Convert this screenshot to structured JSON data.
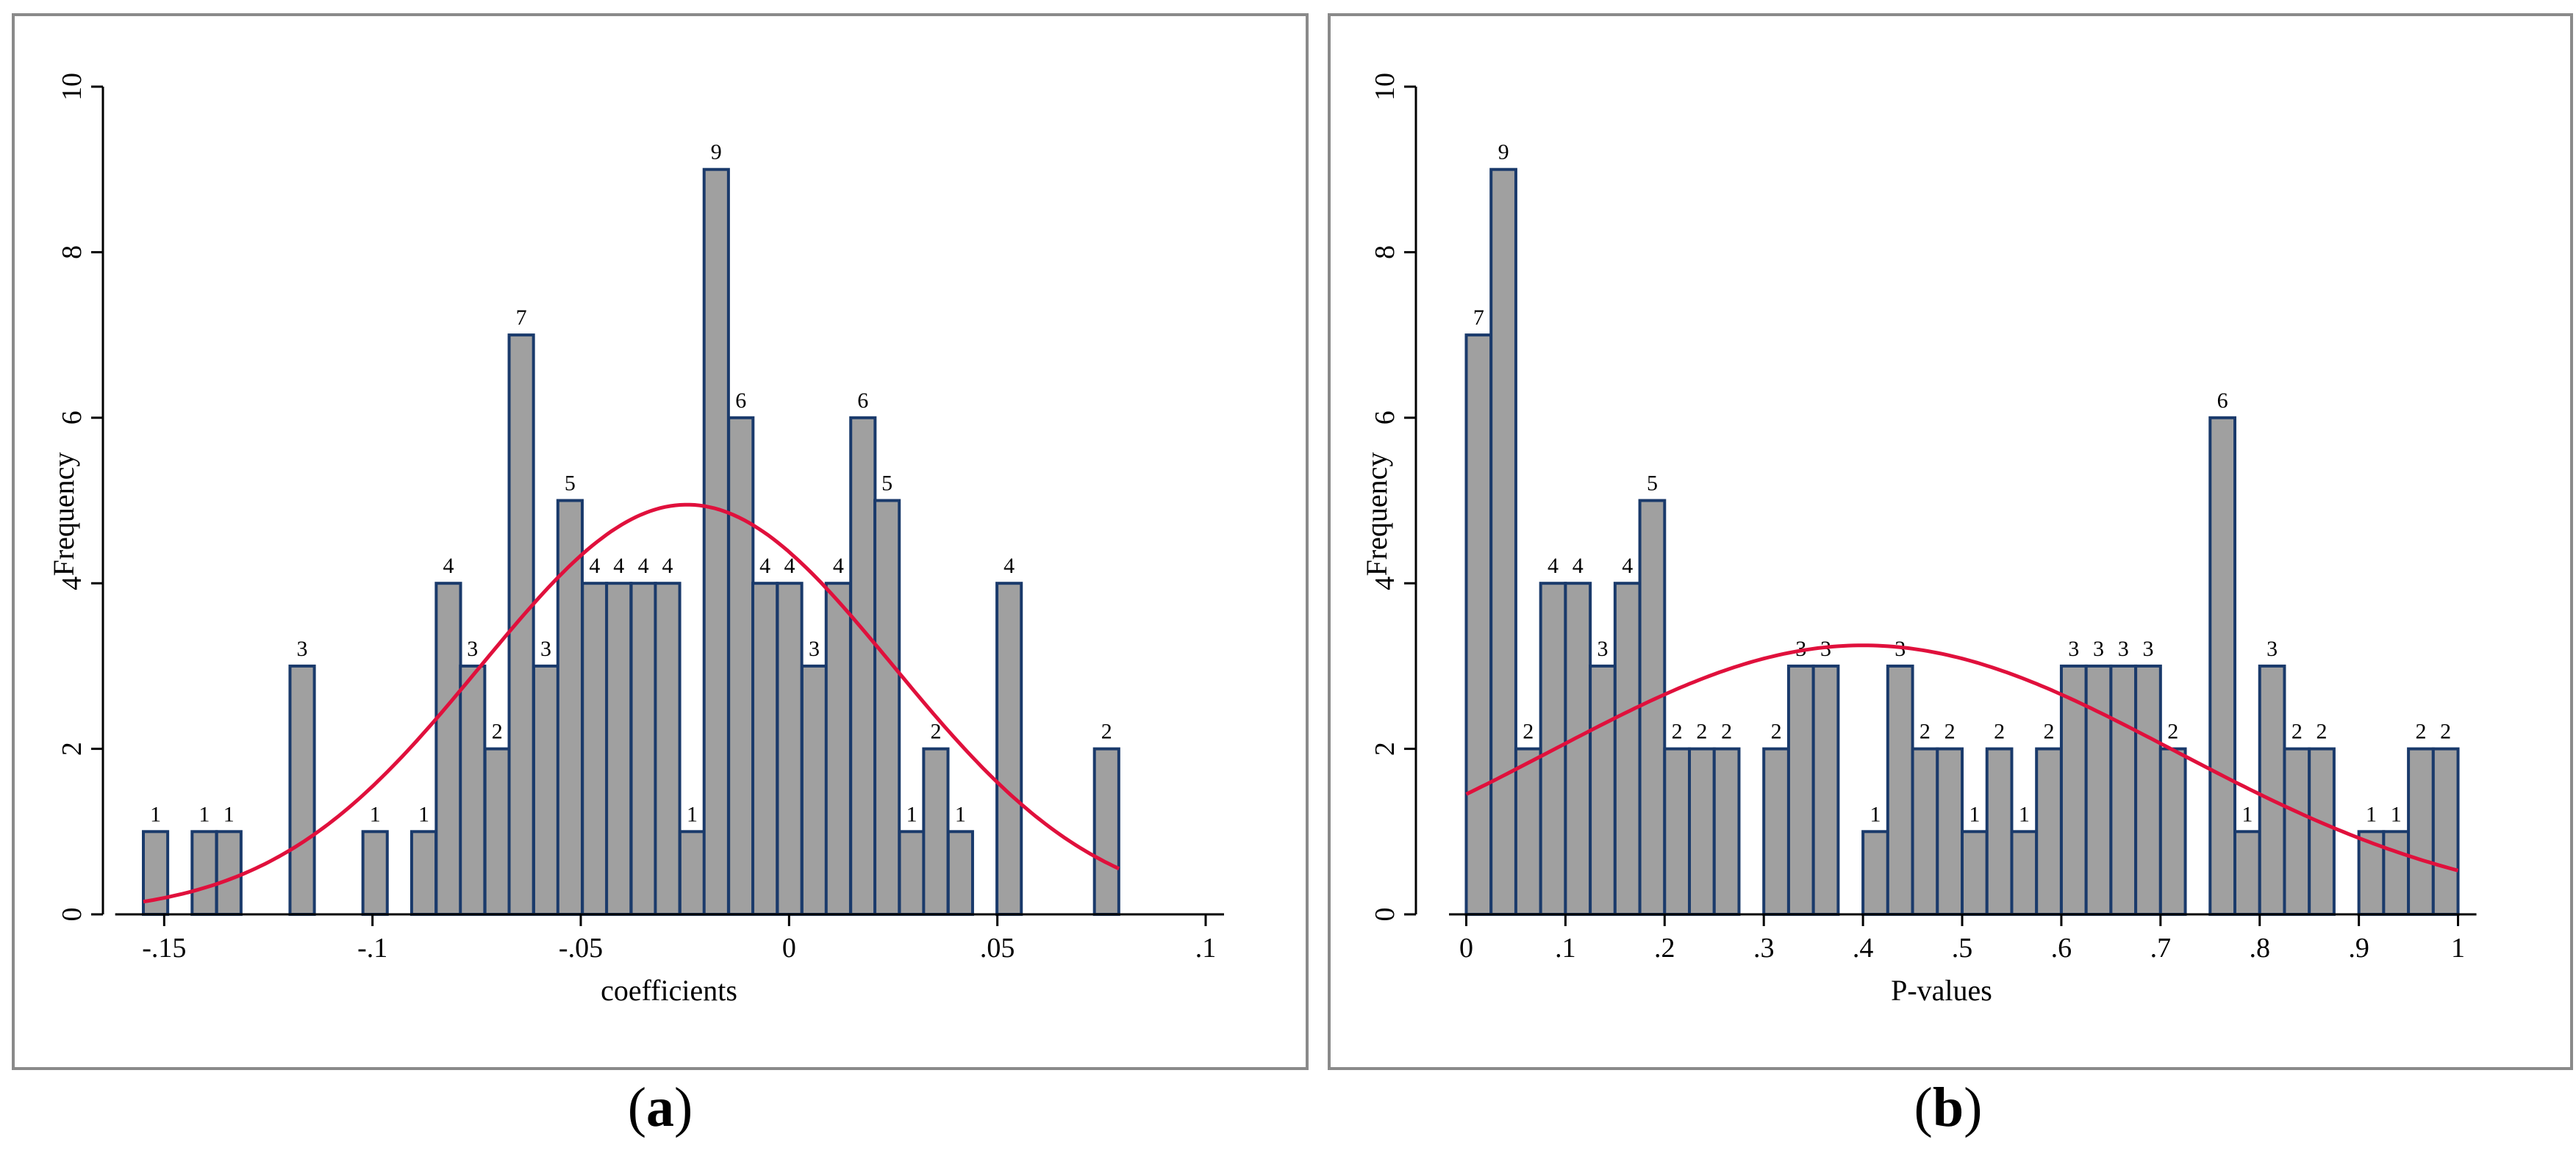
{
  "colors": {
    "bar_fill": "#a0a0a0",
    "bar_edge": "#1a3a6b",
    "curve": "#e0103c",
    "frame": "#8a8a8a"
  },
  "captions": {
    "a_open": "(",
    "a_letter": "a",
    "a_close": ")",
    "b_open": "(",
    "b_letter": "b",
    "b_close": ")"
  },
  "chart_data": [
    {
      "type": "bar",
      "subtype": "histogram",
      "xlabel": "coefficients",
      "ylabel": "Frequency",
      "xlim": [
        -0.155,
        0.1
      ],
      "ylim": [
        0,
        10
      ],
      "x_ticks": [
        -0.15,
        -0.1,
        -0.05,
        0,
        0.05,
        0.1
      ],
      "x_tick_labels": [
        "-.15",
        "-.1",
        "-.05",
        "0",
        ".05",
        ".1"
      ],
      "y_ticks": [
        0,
        2,
        4,
        6,
        8,
        10
      ],
      "y_tick_labels": [
        "0",
        "2",
        "4",
        "6",
        "8",
        "10"
      ],
      "bin_width": 0.00585,
      "bars": [
        {
          "x0": -0.155,
          "value": 1,
          "label": "1"
        },
        {
          "x0": -0.1433,
          "value": 1,
          "label": "1"
        },
        {
          "x0": -0.1374,
          "value": 1,
          "label": "1"
        },
        {
          "x0": -0.1198,
          "value": 3,
          "label": "3"
        },
        {
          "x0": -0.1023,
          "value": 1,
          "label": "1"
        },
        {
          "x0": -0.0906,
          "value": 1,
          "label": "1"
        },
        {
          "x0": -0.0847,
          "value": 4,
          "label": "4"
        },
        {
          "x0": -0.0789,
          "value": 3,
          "label": "3"
        },
        {
          "x0": -0.073,
          "value": 2,
          "label": "2"
        },
        {
          "x0": -0.0672,
          "value": 7,
          "label": "7"
        },
        {
          "x0": -0.0613,
          "value": 3,
          "label": "3"
        },
        {
          "x0": -0.0555,
          "value": 5,
          "label": "5"
        },
        {
          "x0": -0.0496,
          "value": 4,
          "label": "4"
        },
        {
          "x0": -0.0438,
          "value": 4,
          "label": "4"
        },
        {
          "x0": -0.0379,
          "value": 4,
          "label": "4"
        },
        {
          "x0": -0.0321,
          "value": 4,
          "label": "4"
        },
        {
          "x0": -0.0262,
          "value": 1,
          "label": "1"
        },
        {
          "x0": -0.0204,
          "value": 9,
          "label": "9"
        },
        {
          "x0": -0.0145,
          "value": 6,
          "label": "6"
        },
        {
          "x0": -0.0087,
          "value": 4,
          "label": "4"
        },
        {
          "x0": -0.0028,
          "value": 4,
          "label": "4"
        },
        {
          "x0": 0.0031,
          "value": 3,
          "label": "3"
        },
        {
          "x0": 0.0089,
          "value": 4,
          "label": "4"
        },
        {
          "x0": 0.0148,
          "value": 6,
          "label": "6"
        },
        {
          "x0": 0.0206,
          "value": 5,
          "label": "5"
        },
        {
          "x0": 0.0265,
          "value": 1,
          "label": "1"
        },
        {
          "x0": 0.0323,
          "value": 2,
          "label": "2"
        },
        {
          "x0": 0.0382,
          "value": 1,
          "label": "1"
        },
        {
          "x0": 0.0499,
          "value": 4,
          "label": "4"
        },
        {
          "x0": 0.0733,
          "value": 2,
          "label": "2"
        }
      ],
      "normal_curve": {
        "mean": -0.0245,
        "sd": 0.0495,
        "peak": 4.95,
        "x_from": -0.155,
        "x_to": 0.0792
      }
    },
    {
      "type": "bar",
      "subtype": "histogram",
      "xlabel": "P-values",
      "ylabel": "Frequency",
      "xlim": [
        -0.01,
        1.05
      ],
      "ylim": [
        0,
        10
      ],
      "x_ticks": [
        0,
        0.1,
        0.2,
        0.3,
        0.4,
        0.5,
        0.6,
        0.7,
        0.8,
        0.9,
        1
      ],
      "x_tick_labels": [
        "0",
        ".1",
        ".2",
        ".3",
        ".4",
        ".5",
        ".6",
        ".7",
        ".8",
        ".9",
        "1"
      ],
      "y_ticks": [
        0,
        2,
        4,
        6,
        8,
        10
      ],
      "y_tick_labels": [
        "0",
        "2",
        "4",
        "6",
        "8",
        "10"
      ],
      "bin_width": 0.025,
      "bars": [
        {
          "x0": 0.0,
          "value": 7,
          "label": "7"
        },
        {
          "x0": 0.025,
          "value": 9,
          "label": "9"
        },
        {
          "x0": 0.05,
          "value": 2,
          "label": "2"
        },
        {
          "x0": 0.075,
          "value": 4,
          "label": "4"
        },
        {
          "x0": 0.1,
          "value": 4,
          "label": "4"
        },
        {
          "x0": 0.125,
          "value": 3,
          "label": "3"
        },
        {
          "x0": 0.15,
          "value": 4,
          "label": "4"
        },
        {
          "x0": 0.175,
          "value": 5,
          "label": "5"
        },
        {
          "x0": 0.2,
          "value": 2,
          "label": "2"
        },
        {
          "x0": 0.225,
          "value": 2,
          "label": "2"
        },
        {
          "x0": 0.25,
          "value": 2,
          "label": "2"
        },
        {
          "x0": 0.3,
          "value": 2,
          "label": "2"
        },
        {
          "x0": 0.325,
          "value": 3,
          "label": "3"
        },
        {
          "x0": 0.35,
          "value": 3,
          "label": "3"
        },
        {
          "x0": 0.4,
          "value": 1,
          "label": "1"
        },
        {
          "x0": 0.425,
          "value": 3,
          "label": "3"
        },
        {
          "x0": 0.45,
          "value": 2,
          "label": "2"
        },
        {
          "x0": 0.475,
          "value": 2,
          "label": "2"
        },
        {
          "x0": 0.5,
          "value": 1,
          "label": "1"
        },
        {
          "x0": 0.525,
          "value": 2,
          "label": "2"
        },
        {
          "x0": 0.55,
          "value": 1,
          "label": "1"
        },
        {
          "x0": 0.575,
          "value": 2,
          "label": "2"
        },
        {
          "x0": 0.6,
          "value": 3,
          "label": "3"
        },
        {
          "x0": 0.625,
          "value": 3,
          "label": "3"
        },
        {
          "x0": 0.65,
          "value": 3,
          "label": "3"
        },
        {
          "x0": 0.675,
          "value": 3,
          "label": "3"
        },
        {
          "x0": 0.7,
          "value": 2,
          "label": "2"
        },
        {
          "x0": 0.75,
          "value": 6,
          "label": "6"
        },
        {
          "x0": 0.775,
          "value": 1,
          "label": "1"
        },
        {
          "x0": 0.8,
          "value": 3,
          "label": "3"
        },
        {
          "x0": 0.825,
          "value": 2,
          "label": "2"
        },
        {
          "x0": 0.85,
          "value": 2,
          "label": "2"
        },
        {
          "x0": 0.9,
          "value": 1,
          "label": "1"
        },
        {
          "x0": 0.925,
          "value": 1,
          "label": "1"
        },
        {
          "x0": 0.95,
          "value": 2,
          "label": "2"
        },
        {
          "x0": 0.975,
          "value": 2,
          "label": "2"
        }
      ],
      "normal_curve": {
        "mean": 0.4,
        "sd": 0.315,
        "peak": 3.25,
        "x_from": 0.0,
        "x_to": 1.0
      }
    }
  ]
}
